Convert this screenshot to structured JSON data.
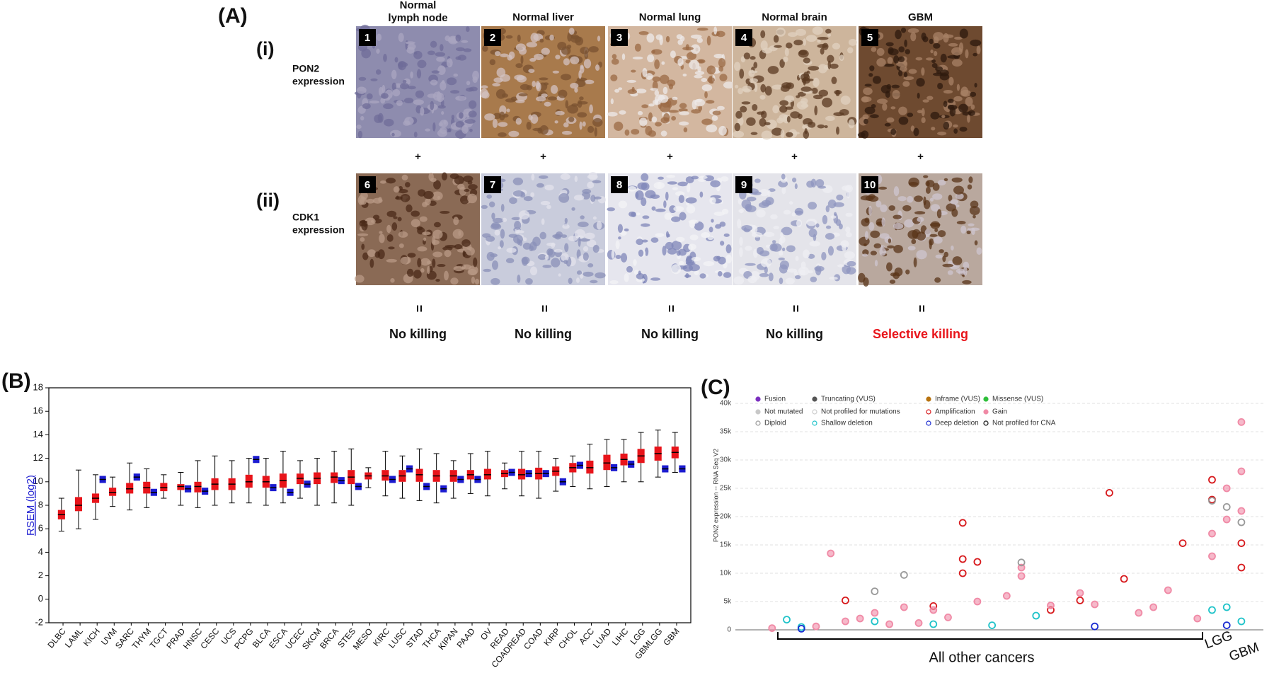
{
  "panel_a": {
    "label": "(A)",
    "rows": [
      {
        "numeral": "(i)",
        "text": [
          "PON2",
          "expression"
        ]
      },
      {
        "numeral": "(ii)",
        "text": [
          "CDK1",
          "expression"
        ]
      }
    ],
    "columns": [
      {
        "title": [
          "Normal",
          "lymph node"
        ],
        "badges": [
          "1",
          "6"
        ],
        "outcome": "No killing"
      },
      {
        "title": [
          "Normal liver"
        ],
        "badges": [
          "2",
          "7"
        ],
        "outcome": "No killing"
      },
      {
        "title": [
          "Normal lung"
        ],
        "badges": [
          "3",
          "8"
        ],
        "outcome": "No killing"
      },
      {
        "title": [
          "Normal brain"
        ],
        "badges": [
          "4",
          "9"
        ],
        "outcome": "No killing"
      },
      {
        "title": [
          "GBM"
        ],
        "badges": [
          "5",
          "10"
        ],
        "outcome": "Selective killing"
      }
    ],
    "plus": "+",
    "equals": "="
  },
  "chart_data": [
    {
      "type": "box",
      "label": "(B)",
      "ylabel": "RSEM (log2)",
      "categories": [
        "DLBC",
        "LAML",
        "KICH",
        "UVM",
        "SARC",
        "THYM",
        "TGCT",
        "PRAD",
        "HNSC",
        "CESC",
        "UCS",
        "PCPG",
        "BLCA",
        "ESCA",
        "UCEC",
        "SKCM",
        "BRCA",
        "STES",
        "MESO",
        "KIRC",
        "LUSC",
        "STAD",
        "THCA",
        "KIPAN",
        "PAAD",
        "OV",
        "READ",
        "COADREAD",
        "COAD",
        "KIRP",
        "CHOL",
        "ACC",
        "LUAD",
        "LIHC",
        "LGG",
        "GBMLGG",
        "GBM"
      ],
      "ylim": [
        -2,
        18
      ],
      "yticks": [
        -2,
        0,
        2,
        4,
        6,
        8,
        10,
        12,
        14,
        16,
        18
      ],
      "series": [
        {
          "color": "#e8141a",
          "median": [
            7.2,
            8.0,
            8.6,
            9.1,
            9.4,
            9.5,
            9.5,
            9.6,
            9.6,
            9.8,
            9.8,
            10.0,
            10.0,
            10.1,
            10.3,
            10.3,
            10.4,
            10.4,
            10.5,
            10.5,
            10.5,
            10.6,
            10.5,
            10.5,
            10.6,
            10.6,
            10.7,
            10.6,
            10.7,
            10.9,
            11.2,
            11.2,
            11.6,
            11.9,
            12.2,
            12.4,
            12.5
          ],
          "q1": [
            6.8,
            7.5,
            8.2,
            8.8,
            9.0,
            9.0,
            9.2,
            9.3,
            9.1,
            9.3,
            9.3,
            9.5,
            9.5,
            9.5,
            9.8,
            9.8,
            9.9,
            9.8,
            10.2,
            10.1,
            10.0,
            10.0,
            10.0,
            10.0,
            10.2,
            10.2,
            10.4,
            10.2,
            10.2,
            10.5,
            10.8,
            10.7,
            11.0,
            11.4,
            11.6,
            11.8,
            12.0
          ],
          "q3": [
            7.6,
            8.7,
            9.0,
            9.5,
            9.9,
            10.0,
            9.9,
            9.8,
            10.0,
            10.3,
            10.3,
            10.6,
            10.5,
            10.7,
            10.7,
            10.8,
            10.8,
            11.0,
            10.8,
            11.0,
            11.0,
            11.1,
            11.0,
            11.0,
            11.0,
            11.1,
            11.0,
            11.1,
            11.2,
            11.3,
            11.6,
            11.8,
            12.3,
            12.4,
            12.8,
            13.0,
            13.0
          ],
          "whislo": [
            5.8,
            6.0,
            6.8,
            7.9,
            7.6,
            7.8,
            8.6,
            8.0,
            7.8,
            8.0,
            8.2,
            8.2,
            8.0,
            8.2,
            8.6,
            8.0,
            8.2,
            8.0,
            9.5,
            8.8,
            8.6,
            8.4,
            8.2,
            8.6,
            9.0,
            8.8,
            9.4,
            8.8,
            8.6,
            9.2,
            9.6,
            9.4,
            9.6,
            10.0,
            10.0,
            10.4,
            10.8
          ],
          "whishi": [
            8.6,
            11.0,
            10.6,
            10.4,
            11.6,
            11.1,
            10.6,
            10.8,
            11.8,
            12.2,
            11.8,
            12.0,
            12.0,
            12.6,
            11.8,
            12.0,
            12.6,
            12.8,
            11.2,
            12.6,
            12.2,
            12.8,
            12.4,
            11.8,
            12.4,
            12.6,
            11.6,
            12.6,
            12.6,
            12.0,
            12.2,
            13.2,
            13.6,
            13.6,
            14.2,
            14.4,
            14.2
          ]
        },
        {
          "color": "#1b1bd0",
          "median": [
            null,
            null,
            10.2,
            null,
            10.4,
            9.1,
            null,
            9.4,
            9.2,
            null,
            null,
            11.9,
            9.5,
            9.1,
            9.8,
            null,
            10.1,
            9.6,
            null,
            10.2,
            11.1,
            9.6,
            9.4,
            10.2,
            10.2,
            null,
            10.8,
            10.7,
            10.7,
            10.0,
            11.4,
            null,
            11.2,
            11.5,
            null,
            11.1,
            11.1
          ]
        }
      ]
    },
    {
      "type": "scatter",
      "label": "(C)",
      "ylabel": "PON2 expression -- RNA Seq V2",
      "xlim": [
        -1.5,
        34.5
      ],
      "ylim": [
        0,
        40500
      ],
      "grid": true,
      "yticks": [
        0,
        {
          "value": 5000,
          "label": "5k"
        },
        {
          "value": 10000,
          "label": "10k"
        },
        {
          "value": 15000,
          "label": "15k"
        },
        {
          "value": 20000,
          "label": "20k"
        },
        {
          "value": 25000,
          "label": "25k"
        },
        {
          "value": 30000,
          "label": "30k"
        },
        {
          "value": 35000,
          "label": "35k"
        },
        {
          "value": 40000,
          "label": "40k"
        }
      ],
      "series": [
        {
          "name": "Fusion",
          "color": "#7b2fbf",
          "filled": true,
          "x": [],
          "values": []
        },
        {
          "name": "Truncating (VUS)",
          "color": "#555555",
          "filled": true,
          "x": [],
          "values": []
        },
        {
          "name": "Inframe (VUS)",
          "color": "#b8730f",
          "filled": true,
          "x": [],
          "values": []
        },
        {
          "name": "Missense (VUS)",
          "color": "#2fbf3a",
          "filled": true,
          "x": [],
          "values": []
        },
        {
          "name": "Not mutated",
          "color": "#c8c8c8",
          "filled": true,
          "x": [],
          "values": []
        },
        {
          "name": "Not profiled for mutations",
          "color": "#cccccc",
          "filled": false,
          "x": [],
          "values": []
        },
        {
          "name": "Amplification",
          "color": "#d7191c",
          "filled": false,
          "x": [
            6,
            12,
            14,
            14,
            14,
            15,
            20,
            22,
            24,
            25,
            29,
            31,
            31,
            33,
            33
          ],
          "values": [
            5200,
            4200,
            12500,
            18900,
            10000,
            12000,
            3500,
            5200,
            24200,
            9000,
            15300,
            23000,
            26500,
            15300,
            11000
          ]
        },
        {
          "name": "Gain",
          "color": "#f08aa6",
          "filled": true,
          "x": [
            1,
            4,
            5,
            6,
            7,
            8,
            9,
            10,
            11,
            12,
            13,
            15,
            17,
            18,
            18,
            20,
            22,
            23,
            26,
            27,
            28,
            30,
            31,
            31,
            32,
            32,
            33,
            33,
            33
          ],
          "values": [
            300,
            600,
            13500,
            1500,
            2000,
            3000,
            1000,
            4000,
            1200,
            3500,
            2200,
            5000,
            6000,
            9500,
            11000,
            4300,
            6500,
            4500,
            3000,
            4000,
            7000,
            2000,
            17000,
            13000,
            25000,
            19500,
            36700,
            28000,
            21000
          ]
        },
        {
          "name": "Diploid",
          "color": "#999999",
          "filled": false,
          "x": [
            8,
            10,
            18,
            31,
            32,
            33
          ],
          "values": [
            6800,
            9700,
            11900,
            22800,
            21700,
            19000
          ]
        },
        {
          "name": "Shallow deletion",
          "color": "#1fc3c9",
          "filled": false,
          "x": [
            2,
            3,
            8,
            12,
            16,
            19,
            31,
            32,
            33
          ],
          "values": [
            1800,
            500,
            1500,
            1000,
            800,
            2500,
            3500,
            4000,
            1500
          ]
        },
        {
          "name": "Deep deletion",
          "color": "#1a2bd1",
          "filled": false,
          "x": [
            3,
            23,
            32
          ],
          "values": [
            200,
            600,
            800
          ]
        },
        {
          "name": "Not profiled for CNA",
          "color": "#111111",
          "filled": false,
          "x": [],
          "values": []
        }
      ],
      "annotations": [
        "All other cancers",
        "LGG",
        "GBM"
      ]
    }
  ]
}
